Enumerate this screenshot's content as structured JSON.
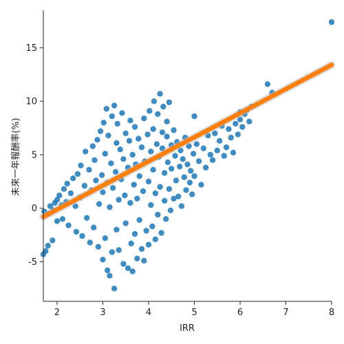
{
  "chart_data": {
    "type": "scatter",
    "title": "",
    "xlabel": "IRR",
    "ylabel": "未來一年報酬率(%)",
    "xlim": [
      1.7,
      8.0
    ],
    "ylim": [
      -8.7,
      18.5
    ],
    "xticks": [
      "2",
      "3",
      "4",
      "5",
      "6",
      "7",
      "8"
    ],
    "xtick_values": [
      2,
      3,
      4,
      5,
      6,
      7,
      8
    ],
    "yticks": [
      "-5",
      "0",
      "5",
      "10",
      "15"
    ],
    "ytick_values": [
      -5,
      0,
      5,
      10,
      15
    ],
    "grid": false,
    "legend": "none",
    "series": [
      {
        "kind": "scatter",
        "color": "#1f77b4",
        "points": [
          [
            1.7,
            -4.3
          ],
          [
            1.72,
            -0.3
          ],
          [
            1.75,
            -4.0
          ],
          [
            1.8,
            -3.5
          ],
          [
            1.82,
            -0.5
          ],
          [
            1.85,
            0.2
          ],
          [
            1.9,
            -3.0
          ],
          [
            1.92,
            -0.2
          ],
          [
            1.95,
            0.5
          ],
          [
            2.0,
            -1.2
          ],
          [
            2.0,
            0.8
          ],
          [
            2.05,
            1.2
          ],
          [
            2.1,
            0.3
          ],
          [
            2.12,
            -1.0
          ],
          [
            2.15,
            1.8
          ],
          [
            2.2,
            0.6
          ],
          [
            2.22,
            2.3
          ],
          [
            2.25,
            -1.6
          ],
          [
            2.3,
            1.4
          ],
          [
            2.35,
            2.8
          ],
          [
            2.4,
            0.2
          ],
          [
            2.42,
            -2.2
          ],
          [
            2.45,
            3.2
          ],
          [
            2.5,
            1.0
          ],
          [
            2.52,
            4.0
          ],
          [
            2.55,
            -2.6
          ],
          [
            2.6,
            2.1
          ],
          [
            2.62,
            5.3
          ],
          [
            2.65,
            -0.9
          ],
          [
            2.7,
            3.6
          ],
          [
            2.72,
            -3.2
          ],
          [
            2.75,
            1.7
          ],
          [
            2.78,
            5.8
          ],
          [
            2.8,
            -1.8
          ],
          [
            2.82,
            4.5
          ],
          [
            2.85,
            2.6
          ],
          [
            2.88,
            6.4
          ],
          [
            2.9,
            -3.6
          ],
          [
            2.92,
            0.4
          ],
          [
            2.95,
            7.2
          ],
          [
            2.98,
            3.1
          ],
          [
            3.0,
            -4.8
          ],
          [
            3.0,
            1.5
          ],
          [
            3.02,
            8.0
          ],
          [
            3.05,
            -2.8
          ],
          [
            3.05,
            5.1
          ],
          [
            3.08,
            9.3
          ],
          [
            3.1,
            -5.8
          ],
          [
            3.1,
            2.4
          ],
          [
            3.12,
            6.8
          ],
          [
            3.15,
            -6.3
          ],
          [
            3.15,
            0.1
          ],
          [
            3.18,
            4.2
          ],
          [
            3.2,
            -4.1
          ],
          [
            3.2,
            8.6
          ],
          [
            3.22,
            1.9
          ],
          [
            3.25,
            9.6
          ],
          [
            3.25,
            -7.5
          ],
          [
            3.28,
            3.4
          ],
          [
            3.3,
            -2.0
          ],
          [
            3.3,
            6.1
          ],
          [
            3.32,
            7.9
          ],
          [
            3.35,
            -3.9
          ],
          [
            3.35,
            0.8
          ],
          [
            3.38,
            5.5
          ],
          [
            3.4,
            2.7
          ],
          [
            3.42,
            8.9
          ],
          [
            3.45,
            -5.2
          ],
          [
            3.45,
            4.6
          ],
          [
            3.48,
            1.2
          ],
          [
            3.5,
            7.0
          ],
          [
            3.5,
            -1.4
          ],
          [
            3.55,
            3.8
          ],
          [
            3.55,
            -5.6
          ],
          [
            3.58,
            6.3
          ],
          [
            3.6,
            0.5
          ],
          [
            3.6,
            8.2
          ],
          [
            3.62,
            -3.3
          ],
          [
            3.65,
            5.0
          ],
          [
            3.65,
            -5.9
          ],
          [
            3.68,
            2.2
          ],
          [
            3.7,
            7.6
          ],
          [
            3.7,
            -2.4
          ],
          [
            3.72,
            4.1
          ],
          [
            3.75,
            0.9
          ],
          [
            3.75,
            -4.7
          ],
          [
            3.78,
            6.5
          ],
          [
            3.8,
            3.0
          ],
          [
            3.8,
            -1.1
          ],
          [
            3.85,
            5.7
          ],
          [
            3.85,
            -3.8
          ],
          [
            3.88,
            1.6
          ],
          [
            3.9,
            8.4
          ],
          [
            3.9,
            -4.9
          ],
          [
            3.92,
            4.4
          ],
          [
            3.95,
            -2.1
          ],
          [
            3.98,
            6.9
          ],
          [
            4.0,
            2.5
          ],
          [
            4.0,
            -3.4
          ],
          [
            4.02,
            9.1
          ],
          [
            4.05,
            0.3
          ],
          [
            4.05,
            5.3
          ],
          [
            4.08,
            -1.7
          ],
          [
            4.1,
            7.4
          ],
          [
            4.1,
            3.6
          ],
          [
            4.12,
            10.0
          ],
          [
            4.15,
            -2.9
          ],
          [
            4.15,
            1.4
          ],
          [
            4.18,
            6.0
          ],
          [
            4.2,
            8.8
          ],
          [
            4.2,
            -0.6
          ],
          [
            4.22,
            4.8
          ],
          [
            4.25,
            10.7
          ],
          [
            4.25,
            2.0
          ],
          [
            4.28,
            -2.3
          ],
          [
            4.3,
            7.1
          ],
          [
            4.3,
            5.6
          ],
          [
            4.32,
            9.5
          ],
          [
            4.35,
            0.7
          ],
          [
            4.35,
            3.3
          ],
          [
            4.38,
            -1.0
          ],
          [
            4.4,
            6.7
          ],
          [
            4.4,
            8.1
          ],
          [
            4.42,
            4.3
          ],
          [
            4.45,
            1.8
          ],
          [
            4.45,
            9.9
          ],
          [
            4.48,
            -0.2
          ],
          [
            4.5,
            5.9
          ],
          [
            4.5,
            3.7
          ],
          [
            4.55,
            7.3
          ],
          [
            4.55,
            0.9
          ],
          [
            4.58,
            4.9
          ],
          [
            4.6,
            2.6
          ],
          [
            4.62,
            6.2
          ],
          [
            4.65,
            1.1
          ],
          [
            4.68,
            3.9
          ],
          [
            4.7,
            5.4
          ],
          [
            4.72,
            0.2
          ],
          [
            4.75,
            4.6
          ],
          [
            4.78,
            2.9
          ],
          [
            4.8,
            6.6
          ],
          [
            4.82,
            1.7
          ],
          [
            4.85,
            4.1
          ],
          [
            4.88,
            5.8
          ],
          [
            4.9,
            2.4
          ],
          [
            4.92,
            3.5
          ],
          [
            4.95,
            1.3
          ],
          [
            4.98,
            5.1
          ],
          [
            5.0,
            8.6
          ],
          [
            5.0,
            3.0
          ],
          [
            5.05,
            6.0
          ],
          [
            5.1,
            4.4
          ],
          [
            5.15,
            2.2
          ],
          [
            5.2,
            5.6
          ],
          [
            5.25,
            3.8
          ],
          [
            5.3,
            6.8
          ],
          [
            5.35,
            5.0
          ],
          [
            5.4,
            4.5
          ],
          [
            5.45,
            7.0
          ],
          [
            5.5,
            5.4
          ],
          [
            5.55,
            6.3
          ],
          [
            5.6,
            7.7
          ],
          [
            5.65,
            4.9
          ],
          [
            5.7,
            5.7
          ],
          [
            5.75,
            7.4
          ],
          [
            5.8,
            6.6
          ],
          [
            5.85,
            5.2
          ],
          [
            5.9,
            7.9
          ],
          [
            5.95,
            6.9
          ],
          [
            6.0,
            8.3
          ],
          [
            6.0,
            9.0
          ],
          [
            6.05,
            7.6
          ],
          [
            6.1,
            8.8
          ],
          [
            6.15,
            9.2
          ],
          [
            6.2,
            8.1
          ],
          [
            6.25,
            9.5
          ],
          [
            6.6,
            11.6
          ],
          [
            6.7,
            10.8
          ],
          [
            8.0,
            17.4
          ]
        ]
      },
      {
        "kind": "line",
        "color": "#ff7f0e",
        "points": [
          [
            1.7,
            -0.8
          ],
          [
            8.0,
            13.4
          ]
        ]
      }
    ]
  }
}
